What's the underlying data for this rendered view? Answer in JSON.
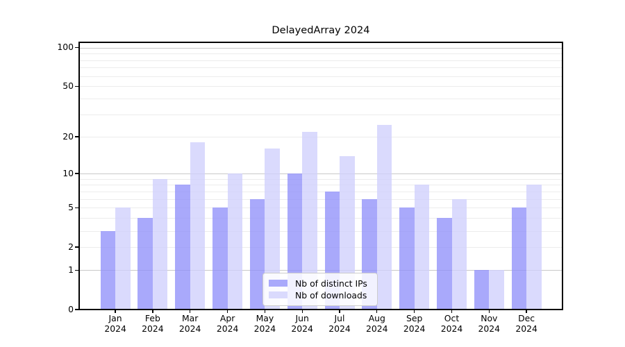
{
  "figure": {
    "title": "DelayedArray 2024"
  },
  "chart_data": {
    "type": "bar",
    "title": "DelayedArray 2024",
    "x_categories": [
      "Jan",
      "Feb",
      "Mar",
      "Apr",
      "May",
      "Jun",
      "Jul",
      "Aug",
      "Sep",
      "Oct",
      "Nov",
      "Dec"
    ],
    "x_year": "2024",
    "series": [
      {
        "name": "Nb of distinct IPs",
        "color": "#a9a9fb",
        "values": [
          3,
          4,
          8,
          5,
          6,
          10,
          7,
          6,
          5,
          4,
          1,
          5
        ]
      },
      {
        "name": "Nb of downloads",
        "color": "#dadafd",
        "values": [
          5,
          9,
          18,
          10,
          16,
          22,
          14,
          25,
          8,
          6,
          1,
          8
        ]
      }
    ],
    "yscale": "log10(1+value)",
    "ylim": [
      0,
      110
    ],
    "y_tick_values": [
      100,
      50,
      20,
      10,
      5,
      2,
      1,
      0
    ],
    "y_tick_labels": [
      "100",
      "50",
      "20",
      "10",
      "5",
      "2",
      "1",
      "0"
    ],
    "y_minor_gridlines": [
      3,
      4,
      6,
      7,
      8,
      9,
      30,
      40,
      60,
      70,
      80,
      90
    ],
    "y_decade_gridlines": [
      1,
      10,
      100
    ],
    "grid": "horizontal",
    "legend": {
      "position": "inside-bottom-center",
      "entries": [
        "Nb of distinct IPs",
        "Nb of downloads"
      ]
    },
    "colors": {
      "grid_major": "#c8c8c8",
      "grid_minor": "#ececec",
      "axis": "#000000"
    }
  }
}
